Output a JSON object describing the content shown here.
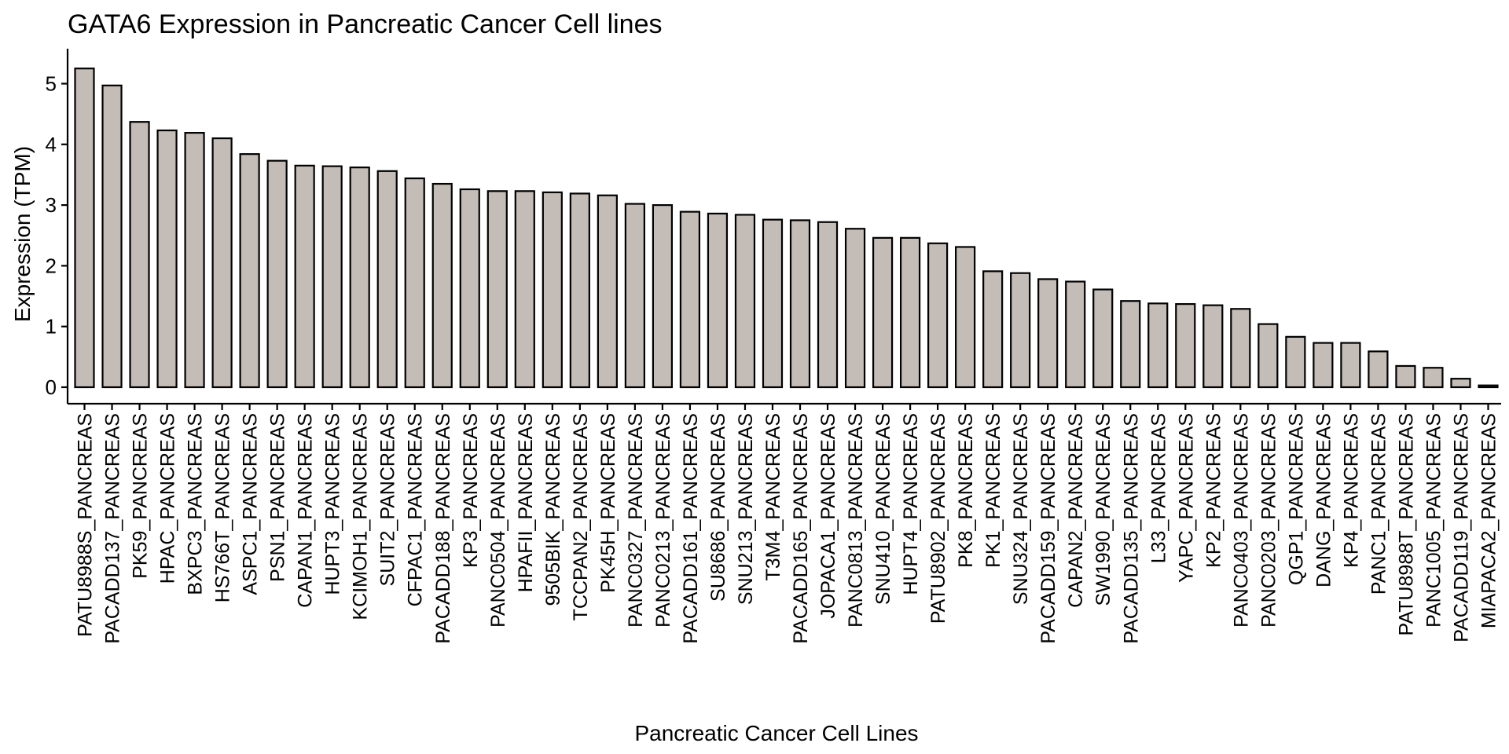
{
  "chart_data": {
    "type": "bar",
    "title": "GATA6 Expression in Pancreatic Cancer Cell lines",
    "xlabel": "Pancreatic Cancer Cell Lines",
    "ylabel": "Expression (TPM)",
    "ylim": [
      0,
      5.4
    ],
    "yticks": [
      0,
      1,
      2,
      3,
      4,
      5
    ],
    "grid": false,
    "bar_color": "#c4bcb6",
    "bar_edge_color": "#000000",
    "categories": [
      "PATU8988S_PANCREAS",
      "PACADD137_PANCREAS",
      "PK59_PANCREAS",
      "HPAC_PANCREAS",
      "BXPC3_PANCREAS",
      "HS766T_PANCREAS",
      "ASPC1_PANCREAS",
      "PSN1_PANCREAS",
      "CAPAN1_PANCREAS",
      "HUPT3_PANCREAS",
      "KCIMOH1_PANCREAS",
      "SUIT2_PANCREAS",
      "CFPAC1_PANCREAS",
      "PACADD188_PANCREAS",
      "KP3_PANCREAS",
      "PANC0504_PANCREAS",
      "HPAFII_PANCREAS",
      "9505BIK_PANCREAS",
      "TCCPAN2_PANCREAS",
      "PK45H_PANCREAS",
      "PANC0327_PANCREAS",
      "PANC0213_PANCREAS",
      "PACADD161_PANCREAS",
      "SU8686_PANCREAS",
      "SNU213_PANCREAS",
      "T3M4_PANCREAS",
      "PACADD165_PANCREAS",
      "JOPACA1_PANCREAS",
      "PANC0813_PANCREAS",
      "SNU410_PANCREAS",
      "HUPT4_PANCREAS",
      "PATU8902_PANCREAS",
      "PK8_PANCREAS",
      "PK1_PANCREAS",
      "SNU324_PANCREAS",
      "PACADD159_PANCREAS",
      "CAPAN2_PANCREAS",
      "SW1990_PANCREAS",
      "PACADD135_PANCREAS",
      "L33_PANCREAS",
      "YAPC_PANCREAS",
      "KP2_PANCREAS",
      "PANC0403_PANCREAS",
      "PANC0203_PANCREAS",
      "QGP1_PANCREAS",
      "DANG_PANCREAS",
      "KP4_PANCREAS",
      "PANC1_PANCREAS",
      "PATU8988T_PANCREAS",
      "PANC1005_PANCREAS",
      "PACADD119_PANCREAS",
      "MIAPACA2_PANCREAS"
    ],
    "values": [
      5.25,
      4.97,
      4.37,
      4.23,
      4.19,
      4.1,
      3.84,
      3.73,
      3.65,
      3.64,
      3.62,
      3.56,
      3.44,
      3.35,
      3.26,
      3.23,
      3.23,
      3.21,
      3.19,
      3.16,
      3.02,
      3.0,
      2.89,
      2.86,
      2.84,
      2.76,
      2.75,
      2.72,
      2.61,
      2.46,
      2.46,
      2.37,
      2.31,
      1.91,
      1.88,
      1.78,
      1.74,
      1.61,
      1.42,
      1.38,
      1.37,
      1.35,
      1.29,
      1.04,
      0.83,
      0.73,
      0.73,
      0.59,
      0.35,
      0.32,
      0.14,
      0.03
    ]
  }
}
